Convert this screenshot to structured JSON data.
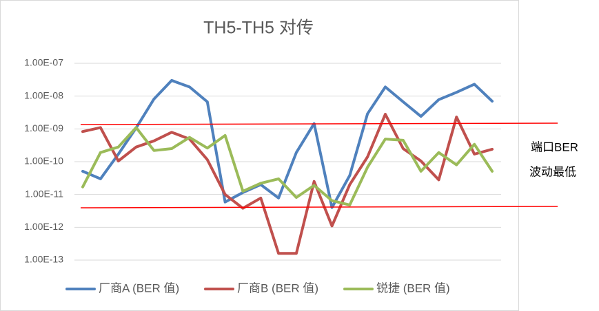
{
  "chart_data": {
    "type": "line",
    "title": "TH5-TH5 对传",
    "categories": [
      null,
      null,
      null,
      null,
      null,
      null,
      null,
      null,
      null,
      null,
      null,
      null,
      null,
      null,
      null,
      null,
      null,
      null,
      null,
      null,
      null,
      null,
      null,
      null
    ],
    "log_y": true,
    "grid": true,
    "legend": "bottom",
    "ylim": [
      1e-13,
      1e-07
    ],
    "yticks": [
      {
        "value": 1e-13,
        "label": "1.00E-13"
      },
      {
        "value": 1e-12,
        "label": "1.00E-12"
      },
      {
        "value": 1e-11,
        "label": "1.00E-11"
      },
      {
        "value": 1e-10,
        "label": "1.00E-10"
      },
      {
        "value": 1e-09,
        "label": "1.00E-09"
      },
      {
        "value": 1e-08,
        "label": "1.00E-08"
      },
      {
        "value": 1e-07,
        "label": "1.00E-07"
      }
    ],
    "annotations": [
      "端口BER",
      "波动最低"
    ],
    "series": [
      {
        "name": "厂商A (BER 值)",
        "color": "#4f81bd",
        "values": [
          5.1e-11,
          3e-11,
          1.7e-10,
          1.07e-09,
          8.1e-09,
          3e-08,
          1.9e-08,
          6.7e-09,
          5.9e-12,
          1.15e-11,
          2e-11,
          7.8e-12,
          1.9e-10,
          1.45e-09,
          4e-12,
          3.8e-11,
          2.9e-09,
          1.9e-08,
          6.7e-09,
          2.4e-09,
          7.8e-09,
          1.3e-08,
          2.3e-08,
          7e-09
        ]
      },
      {
        "name": "厂商B (BER 值)",
        "color": "#c0504d",
        "values": [
          8.3e-10,
          1.1e-09,
          1.05e-10,
          2.8e-10,
          4.3e-10,
          7.9e-10,
          4.9e-10,
          1.15e-10,
          1e-11,
          3.8e-12,
          7.8e-12,
          1.6e-13,
          1.6e-13,
          2.5e-11,
          1.1e-12,
          2e-11,
          1.4e-10,
          2.8e-09,
          2.5e-10,
          1.05e-10,
          2.8e-11,
          2.3e-09,
          1.7e-10,
          2.4e-10
        ]
      },
      {
        "name": "锐捷 (BER 值)",
        "color": "#9bbb59",
        "values": [
          1.7e-11,
          1.9e-10,
          2.8e-10,
          1.1e-09,
          2.2e-10,
          2.5e-10,
          5.5e-10,
          2.6e-10,
          6.3e-10,
          1.26e-11,
          2.2e-11,
          3e-11,
          8.1e-12,
          1.9e-11,
          6.5e-12,
          4.8e-12,
          6.8e-11,
          4.9e-10,
          4.5e-10,
          5.1e-11,
          1.9e-10,
          8e-11,
          3.4e-10,
          5.1e-11
        ]
      }
    ]
  }
}
